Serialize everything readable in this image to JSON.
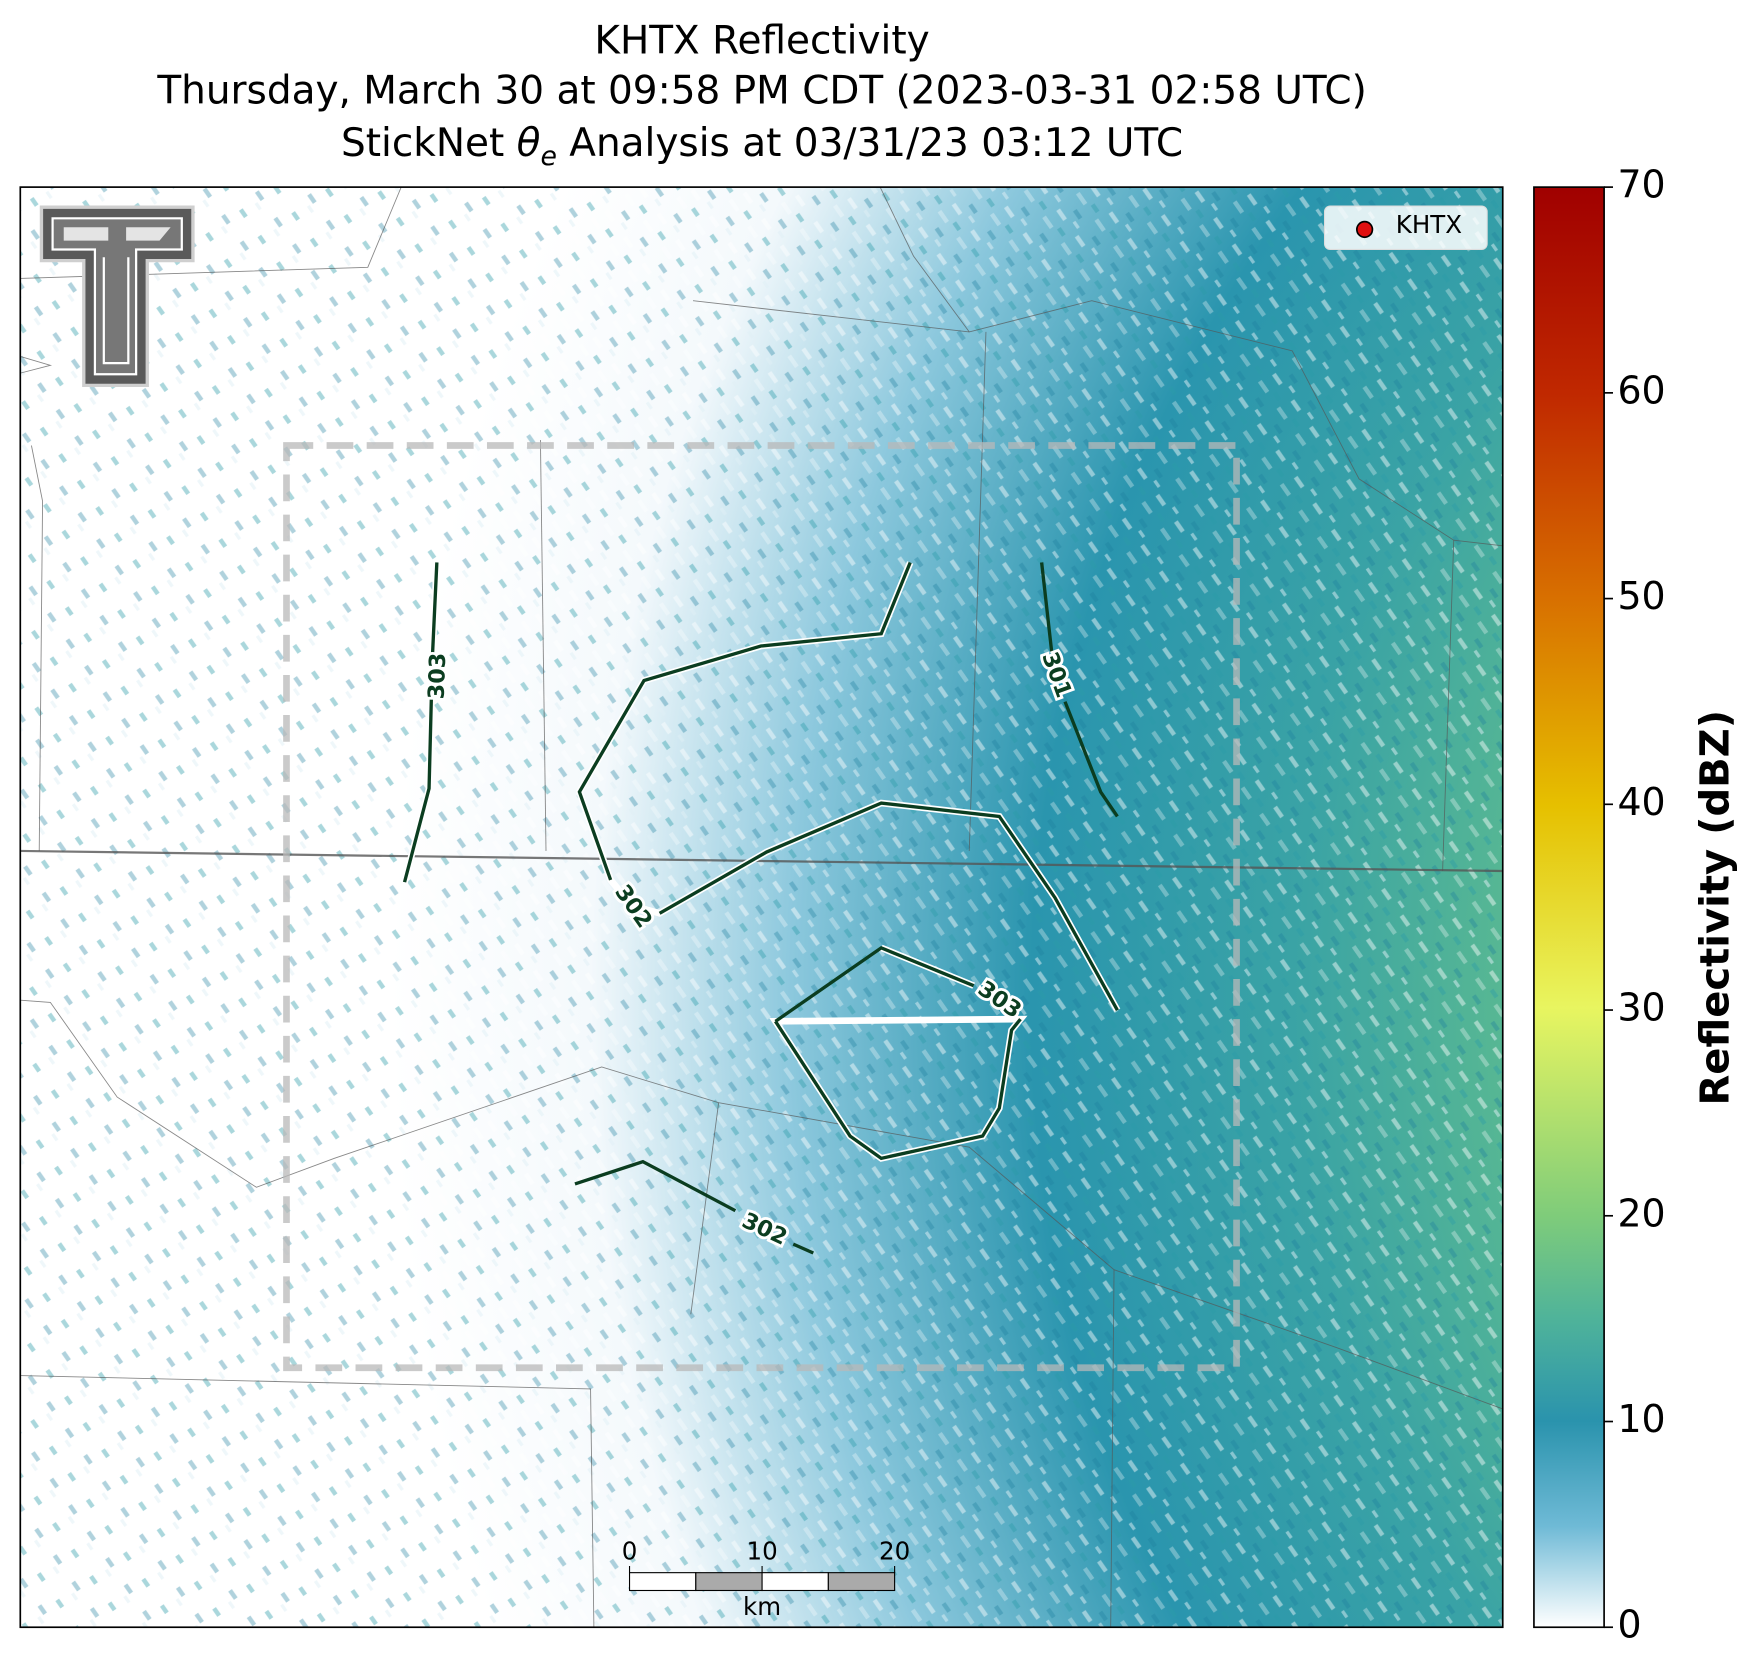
{
  "chart_data": {
    "type": "radar-map",
    "title": "KHTX Reflectivity",
    "subtitle": "Thursday, March 30 at 09:58 PM CDT (2023-03-31 02:58 UTC)",
    "analysis_title": {
      "prefix": "StickNet ",
      "symbol": "θ",
      "subscript": "e",
      "suffix": " Analysis at 03/31/23 03:12 UTC"
    },
    "legend": {
      "label": "KHTX",
      "color": "#e01010"
    },
    "contours": [
      {
        "value": 303
      },
      {
        "value": 302
      },
      {
        "value": 301
      },
      {
        "value": 303
      },
      {
        "value": 302
      }
    ],
    "colorbar": {
      "label": "Reflectivity (dBZ)",
      "lim": [
        0,
        70
      ],
      "ticks": [
        0,
        10,
        20,
        30,
        40,
        50,
        60,
        70
      ]
    },
    "scale_bar": {
      "unit": "km",
      "ticks": [
        0,
        10,
        20
      ]
    }
  }
}
